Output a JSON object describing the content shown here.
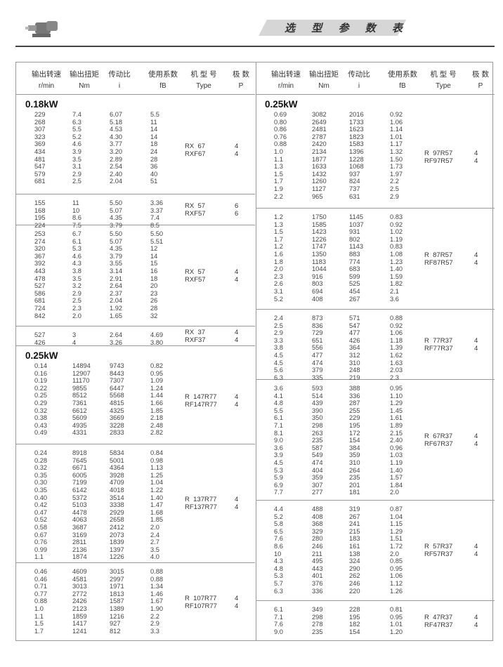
{
  "header": {
    "title": "选 型 参 数 表"
  },
  "columns": [
    {
      "zh": "输出转速",
      "en": "r/min"
    },
    {
      "zh": "输出扭矩",
      "en": "Nm"
    },
    {
      "zh": "传动比",
      "en": "i"
    },
    {
      "zh": "使用系数",
      "en": "fB"
    },
    {
      "zh": "机 型 号",
      "en": "Type"
    },
    {
      "zh": "极  数",
      "en": "P"
    }
  ],
  "left": [
    {
      "kw": "0.18kW",
      "type": [
        "RX  67",
        "RXF67"
      ],
      "poles": [
        "4",
        "4"
      ],
      "rows": [
        [
          "229",
          "7.4",
          "6.07",
          "5.5"
        ],
        [
          "268",
          "6.3",
          "5.18",
          "11"
        ],
        [
          "307",
          "5.5",
          "4.53",
          "14"
        ],
        [
          "323",
          "5.2",
          "4.30",
          "14"
        ],
        [
          "369",
          "4.6",
          "3.77",
          "18"
        ],
        [
          "434",
          "3.9",
          "3.20",
          "24"
        ],
        [
          "481",
          "3.5",
          "2.89",
          "28"
        ],
        [
          "547",
          "3.1",
          "2.54",
          "36"
        ],
        [
          "579",
          "2.9",
          "2.40",
          "40"
        ],
        [
          "681",
          "2.5",
          "2.04",
          "51"
        ]
      ]
    },
    {
      "kw": "",
      "type": [
        "RX  57",
        "RXF57"
      ],
      "poles": [
        "6",
        "6"
      ],
      "rows": [
        [
          "155",
          "11",
          "5.50",
          "3.36"
        ],
        [
          "168",
          "10",
          "5.07",
          "3.37"
        ],
        [
          "195",
          "8.6",
          "4.35",
          "7.4"
        ],
        [
          "224",
          "7.5",
          "3.79",
          "8.5"
        ]
      ]
    },
    {
      "kw": "",
      "type": [
        "RX  57",
        "RXF57"
      ],
      "poles": [
        "4",
        "4"
      ],
      "rows": [
        [
          "253",
          "6.7",
          "5.50",
          "5.50"
        ],
        [
          "274",
          "6.1",
          "5.07",
          "5.51"
        ],
        [
          "320",
          "5.3",
          "4.35",
          "12"
        ],
        [
          "367",
          "4.6",
          "3.79",
          "14"
        ],
        [
          "392",
          "4.3",
          "3.55",
          "15"
        ],
        [
          "443",
          "3.8",
          "3.14",
          "16"
        ],
        [
          "478",
          "3.5",
          "2.91",
          "18"
        ],
        [
          "527",
          "3.2",
          "2.64",
          "20"
        ],
        [
          "586",
          "2.9",
          "2.37",
          "23"
        ],
        [
          "681",
          "2.5",
          "2.04",
          "26"
        ],
        [
          "724",
          "2.3",
          "1.92",
          "28"
        ],
        [
          "842",
          "2.0",
          "1.65",
          "32"
        ]
      ]
    },
    {
      "kw": "",
      "type": [
        "RX  37",
        "RXF37"
      ],
      "poles": [
        "4",
        "4"
      ],
      "rows": [
        [
          "527",
          "3",
          "2.64",
          "4.69"
        ],
        [
          "426",
          "4",
          "3.26",
          "3.80"
        ]
      ]
    },
    {
      "kw": "0.25kW",
      "type": [
        "R  147R77",
        "RF147R77"
      ],
      "poles": [
        "4",
        "4"
      ],
      "rows": [
        [
          "0.14",
          "14894",
          "9743",
          "0.82"
        ],
        [
          "0.16",
          "12907",
          "8443",
          "0.95"
        ],
        [
          "0.19",
          "11170",
          "7307",
          "1.09"
        ],
        [
          "0.22",
          "9855",
          "6447",
          "1.24"
        ],
        [
          "0.25",
          "8512",
          "5568",
          "1.44"
        ],
        [
          "0.29",
          "7361",
          "4815",
          "1.66"
        ],
        [
          "0.32",
          "6612",
          "4325",
          "1.85"
        ],
        [
          "0.38",
          "5609",
          "3669",
          "2.18"
        ],
        [
          "0.43",
          "4935",
          "3228",
          "2.48"
        ],
        [
          "0.49",
          "4331",
          "2833",
          "2.82"
        ]
      ]
    },
    {
      "kw": "",
      "type": [
        "R  137R77",
        "RF137R77"
      ],
      "poles": [
        "4",
        "4"
      ],
      "rows": [
        [
          "0.24",
          "8918",
          "5834",
          "0.84"
        ],
        [
          "0.28",
          "7645",
          "5001",
          "0.98"
        ],
        [
          "0.32",
          "6671",
          "4364",
          "1.13"
        ],
        [
          "0.35",
          "6005",
          "3928",
          "1.25"
        ],
        [
          "0.30",
          "7199",
          "4709",
          "1.04"
        ],
        [
          "0.35",
          "6142",
          "4018",
          "1.22"
        ],
        [
          "0.40",
          "5372",
          "3514",
          "1.40"
        ],
        [
          "0.42",
          "5103",
          "3338",
          "1.47"
        ],
        [
          "0.47",
          "4478",
          "2929",
          "1.68"
        ],
        [
          "0.52",
          "4063",
          "2658",
          "1.85"
        ],
        [
          "0.58",
          "3687",
          "2412",
          "2.0"
        ],
        [
          "0.67",
          "3169",
          "2073",
          "2.4"
        ],
        [
          "0.76",
          "2811",
          "1839",
          "2.7"
        ],
        [
          "0.99",
          "2136",
          "1397",
          "3.5"
        ],
        [
          "1.1",
          "1874",
          "1226",
          "4.0"
        ]
      ]
    },
    {
      "kw": "",
      "type": [
        "R  107R77",
        "RF107R77"
      ],
      "poles": [
        "4",
        "4"
      ],
      "rows": [
        [
          "0.46",
          "4609",
          "3015",
          "0.88"
        ],
        [
          "0.46",
          "4581",
          "2997",
          "0.88"
        ],
        [
          "0.71",
          "3013",
          "1971",
          "1.34"
        ],
        [
          "0.77",
          "2772",
          "1813",
          "1.46"
        ],
        [
          "0.88",
          "2426",
          "1587",
          "1.67"
        ],
        [
          "1.0",
          "2123",
          "1389",
          "1.90"
        ],
        [
          "1.1",
          "1859",
          "1216",
          "2.2"
        ],
        [
          "1.5",
          "1417",
          "927",
          "2.9"
        ],
        [
          "1.7",
          "1241",
          "812",
          "3.3"
        ]
      ]
    }
  ],
  "right": [
    {
      "kw": "0.25kW",
      "type": [
        "R  97R57",
        "RF97R57"
      ],
      "poles": [
        "4",
        "4"
      ],
      "rows": [
        [
          "0.69",
          "3082",
          "2016",
          "0.92"
        ],
        [
          "0.80",
          "2649",
          "1733",
          "1.06"
        ],
        [
          "0.86",
          "2481",
          "1623",
          "1.14"
        ],
        [
          "0.76",
          "2787",
          "1823",
          "1.01"
        ],
        [
          "0.88",
          "2420",
          "1583",
          "1.17"
        ],
        [
          "1.0",
          "2134",
          "1396",
          "1.32"
        ],
        [
          "1.1",
          "1877",
          "1228",
          "1.50"
        ],
        [
          "1.3",
          "1633",
          "1068",
          "1.73"
        ],
        [
          "1.5",
          "1432",
          "937",
          "1.97"
        ],
        [
          "1.7",
          "1260",
          "824",
          "2.2"
        ],
        [
          "1.9",
          "1127",
          "737",
          "2.5"
        ],
        [
          "2.2",
          "965",
          "631",
          "2.9"
        ]
      ]
    },
    {
      "kw": "",
      "type": [
        "R  87R57",
        "RF87R57"
      ],
      "poles": [
        "4",
        "4"
      ],
      "rows": [
        [
          "1.2",
          "1750",
          "1145",
          "0.83"
        ],
        [
          "1.3",
          "1585",
          "1037",
          "0.92"
        ],
        [
          "1.5",
          "1423",
          "931",
          "1.02"
        ],
        [
          "1.7",
          "1226",
          "802",
          "1.19"
        ],
        [
          "1.2",
          "1747",
          "1143",
          "0.83"
        ],
        [
          "1.6",
          "1350",
          "883",
          "1.08"
        ],
        [
          "1.8",
          "1183",
          "774",
          "1.23"
        ],
        [
          "2.0",
          "1044",
          "683",
          "1.40"
        ],
        [
          "2.3",
          "916",
          "599",
          "1.59"
        ],
        [
          "2.6",
          "803",
          "525",
          "1.82"
        ],
        [
          "3.1",
          "694",
          "454",
          "2.1"
        ],
        [
          "5.2",
          "408",
          "267",
          "3.6"
        ]
      ]
    },
    {
      "kw": "",
      "type": [
        "R  77R37",
        "RF77R37"
      ],
      "poles": [
        "4",
        "4"
      ],
      "rows": [
        [
          "2.4",
          "873",
          "571",
          "0.88"
        ],
        [
          "2.5",
          "836",
          "547",
          "0.92"
        ],
        [
          "2.9",
          "729",
          "477",
          "1.06"
        ],
        [
          "3.3",
          "651",
          "426",
          "1.18"
        ],
        [
          "3.8",
          "556",
          "364",
          "1.39"
        ],
        [
          "4.5",
          "477",
          "312",
          "1.62"
        ],
        [
          "4.5",
          "474",
          "310",
          "1.63"
        ],
        [
          "5.6",
          "379",
          "248",
          "2.03"
        ],
        [
          "6.3",
          "335",
          "219",
          "2.3"
        ]
      ]
    },
    {
      "kw": "",
      "type": [
        "R  67R37",
        "RF67R37"
      ],
      "poles": [
        "4",
        "4"
      ],
      "rows": [
        [
          "3.6",
          "593",
          "388",
          "0.95"
        ],
        [
          "4.1",
          "514",
          "336",
          "1.10"
        ],
        [
          "4.8",
          "439",
          "287",
          "1.29"
        ],
        [
          "5.5",
          "390",
          "255",
          "1.45"
        ],
        [
          "6.1",
          "350",
          "229",
          "1.61"
        ],
        [
          "7.1",
          "298",
          "195",
          "1.89"
        ],
        [
          "8.1",
          "263",
          "172",
          "2.15"
        ],
        [
          "9.0",
          "235",
          "154",
          "2.40"
        ],
        [
          "3.6",
          "587",
          "384",
          "0.96"
        ],
        [
          "3.9",
          "549",
          "359",
          "1.03"
        ],
        [
          "4.5",
          "474",
          "310",
          "1.19"
        ],
        [
          "5.3",
          "404",
          "264",
          "1.40"
        ],
        [
          "5.9",
          "359",
          "235",
          "1.57"
        ],
        [
          "6.9",
          "307",
          "201",
          "1.84"
        ],
        [
          "7.7",
          "277",
          "181",
          "2.0"
        ]
      ]
    },
    {
      "kw": "",
      "type": [
        "R  57R37",
        "RF57R37"
      ],
      "poles": [
        "4",
        "4"
      ],
      "rows": [
        [
          "4.4",
          "488",
          "319",
          "0.87"
        ],
        [
          "5.2",
          "408",
          "267",
          "1.04"
        ],
        [
          "5.8",
          "368",
          "241",
          "1.15"
        ],
        [
          "6.5",
          "329",
          "215",
          "1.29"
        ],
        [
          "7.6",
          "280",
          "183",
          "1.51"
        ],
        [
          "8.6",
          "246",
          "161",
          "1.72"
        ],
        [
          "10",
          "211",
          "138",
          "2.0"
        ],
        [
          "4.3",
          "495",
          "324",
          "0.85"
        ],
        [
          "4.8",
          "443",
          "290",
          "0.95"
        ],
        [
          "5.3",
          "401",
          "262",
          "1.06"
        ],
        [
          "5.7",
          "376",
          "246",
          "1.12"
        ],
        [
          "6.3",
          "336",
          "220",
          "1.26"
        ]
      ]
    },
    {
      "kw": "",
      "type": [
        "R  47R37",
        "RF47R37"
      ],
      "poles": [
        "4",
        "4"
      ],
      "rows": [
        [
          "6.1",
          "349",
          "228",
          "0.81"
        ],
        [
          "7.1",
          "298",
          "195",
          "0.95"
        ],
        [
          "7.6",
          "278",
          "182",
          "1.01"
        ],
        [
          "9.0",
          "235",
          "154",
          "1.20"
        ]
      ]
    }
  ]
}
